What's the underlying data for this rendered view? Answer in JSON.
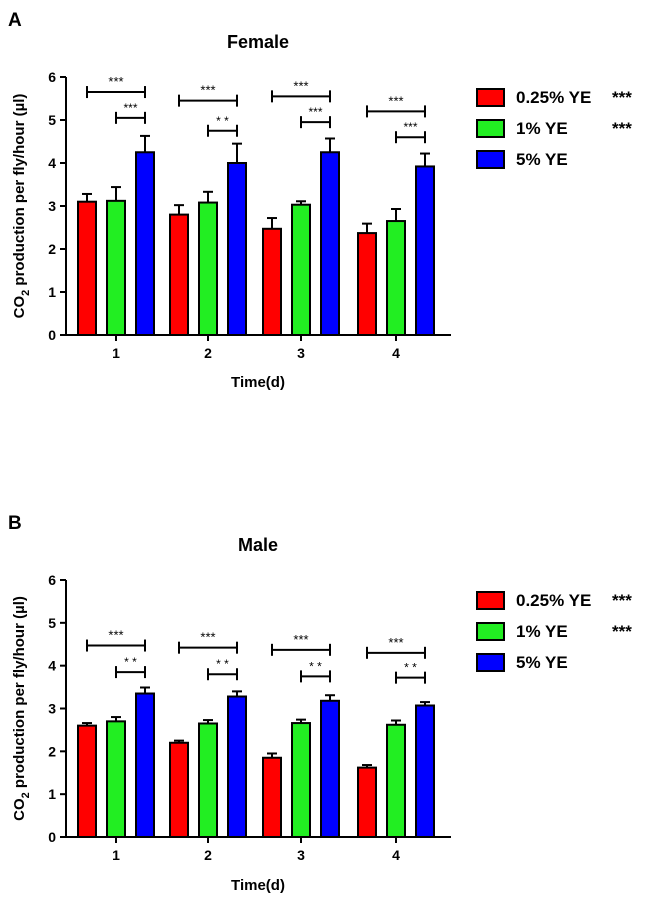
{
  "chart_data": [
    {
      "type": "bar",
      "panel_label": "A",
      "title": "Female",
      "xlabel": "Time(d)",
      "ylabel_parts": [
        "CO",
        "2",
        " production per fly/hour (µl)"
      ],
      "categories": [
        "1",
        "2",
        "3",
        "4"
      ],
      "ylim": [
        0,
        6
      ],
      "yticks": [
        "0",
        "1",
        "2",
        "3",
        "4",
        "5",
        "6"
      ],
      "grid": false,
      "legend_placement": "right",
      "series": [
        {
          "name": "0.25% YE",
          "color": "#ff0000",
          "values": [
            3.1,
            2.8,
            2.47,
            2.37
          ],
          "errors": [
            0.18,
            0.22,
            0.25,
            0.22
          ],
          "legend_sig": "***"
        },
        {
          "name": "1% YE",
          "color": "#22ee22",
          "values": [
            3.12,
            3.08,
            3.03,
            2.65
          ],
          "errors": [
            0.32,
            0.25,
            0.08,
            0.28
          ],
          "legend_sig": "***"
        },
        {
          "name": "5% YE",
          "color": "#0000ff",
          "values": [
            4.25,
            4.0,
            4.25,
            3.92
          ],
          "errors": [
            0.38,
            0.45,
            0.32,
            0.3
          ],
          "legend_sig": ""
        }
      ],
      "annotations": [
        {
          "category": "1",
          "from": 0,
          "to": 2,
          "label": "***",
          "level": 5.65
        },
        {
          "category": "1",
          "from": 1,
          "to": 2,
          "label": "***",
          "level": 5.05
        },
        {
          "category": "2",
          "from": 0,
          "to": 2,
          "label": "***",
          "level": 5.45
        },
        {
          "category": "2",
          "from": 1,
          "to": 2,
          "label": "* *",
          "level": 4.75
        },
        {
          "category": "3",
          "from": 0,
          "to": 2,
          "label": "***",
          "level": 5.55
        },
        {
          "category": "3",
          "from": 1,
          "to": 2,
          "label": "***",
          "level": 4.95
        },
        {
          "category": "4",
          "from": 0,
          "to": 2,
          "label": "***",
          "level": 5.2
        },
        {
          "category": "4",
          "from": 1,
          "to": 2,
          "label": "***",
          "level": 4.6
        }
      ]
    },
    {
      "type": "bar",
      "panel_label": "B",
      "title": "Male",
      "xlabel": "Time(d)",
      "ylabel_parts": [
        "CO",
        "2",
        " production per fly/hour (µl)"
      ],
      "categories": [
        "1",
        "2",
        "3",
        "4"
      ],
      "ylim": [
        0,
        6
      ],
      "yticks": [
        "0",
        "1",
        "2",
        "3",
        "4",
        "5",
        "6"
      ],
      "grid": false,
      "legend_placement": "right",
      "series": [
        {
          "name": "0.25% YE",
          "color": "#ff0000",
          "values": [
            2.6,
            2.2,
            1.85,
            1.62
          ],
          "errors": [
            0.06,
            0.05,
            0.1,
            0.06
          ],
          "legend_sig": "***"
        },
        {
          "name": "1% YE",
          "color": "#22ee22",
          "values": [
            2.7,
            2.65,
            2.66,
            2.62
          ],
          "errors": [
            0.1,
            0.08,
            0.08,
            0.1
          ],
          "legend_sig": "***"
        },
        {
          "name": "5% YE",
          "color": "#0000ff",
          "values": [
            3.35,
            3.28,
            3.18,
            3.07
          ],
          "errors": [
            0.14,
            0.12,
            0.13,
            0.08
          ],
          "legend_sig": ""
        }
      ],
      "annotations": [
        {
          "category": "1",
          "from": 0,
          "to": 2,
          "label": "***",
          "level": 4.47
        },
        {
          "category": "1",
          "from": 1,
          "to": 2,
          "label": "* *",
          "level": 3.85
        },
        {
          "category": "2",
          "from": 0,
          "to": 2,
          "label": "***",
          "level": 4.42
        },
        {
          "category": "2",
          "from": 1,
          "to": 2,
          "label": "* *",
          "level": 3.8
        },
        {
          "category": "3",
          "from": 0,
          "to": 2,
          "label": "***",
          "level": 4.37
        },
        {
          "category": "3",
          "from": 1,
          "to": 2,
          "label": "* *",
          "level": 3.75
        },
        {
          "category": "4",
          "from": 0,
          "to": 2,
          "label": "***",
          "level": 4.3
        },
        {
          "category": "4",
          "from": 1,
          "to": 2,
          "label": "* *",
          "level": 3.72
        }
      ]
    }
  ]
}
